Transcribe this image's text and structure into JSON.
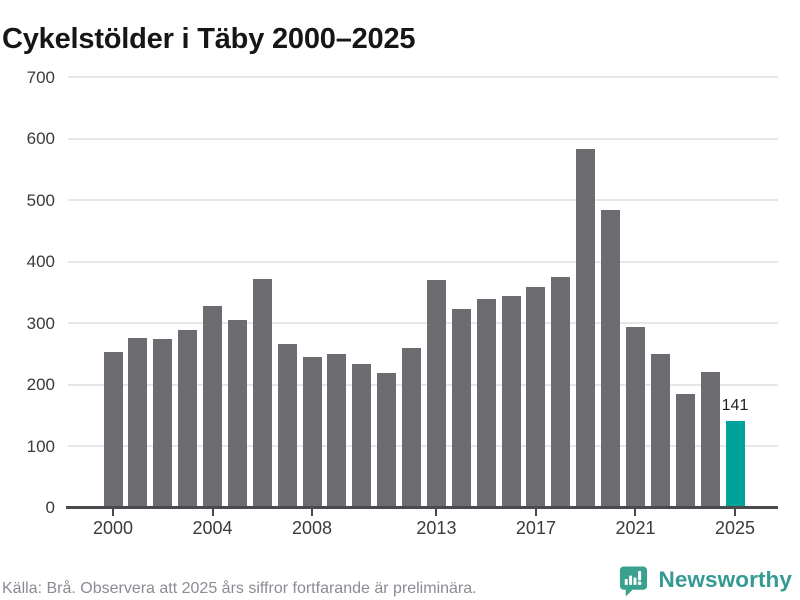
{
  "title": "Cykelstölder i Täby 2000–2025",
  "chart_data": {
    "type": "bar",
    "title": "Cykelstölder i Täby 2000–2025",
    "x": [
      2000,
      2001,
      2002,
      2003,
      2004,
      2005,
      2006,
      2007,
      2008,
      2009,
      2010,
      2011,
      2012,
      2013,
      2014,
      2015,
      2016,
      2017,
      2018,
      2019,
      2020,
      2021,
      2022,
      2023,
      2024,
      2025
    ],
    "values": [
      253,
      276,
      274,
      289,
      328,
      305,
      372,
      266,
      245,
      250,
      234,
      218,
      260,
      370,
      323,
      339,
      344,
      358,
      375,
      583,
      484,
      294,
      250,
      184,
      221,
      141
    ],
    "highlight_year": 2025,
    "highlight_value_label": "141",
    "xlabel": "",
    "ylabel": "",
    "ylim": [
      0,
      700
    ],
    "yticks": [
      0,
      100,
      200,
      300,
      400,
      500,
      600,
      700
    ],
    "xticks": [
      2000,
      2004,
      2008,
      2013,
      2017,
      2021,
      2025
    ],
    "grid": true,
    "legend": "none",
    "bar_color": "#6b6b70",
    "highlight_color": "#00a39c"
  },
  "footer": {
    "source_note": "Källa: Brå. Observera att 2025 års siffror fortfarande är preliminära."
  },
  "logo": {
    "brand": "Newsworthy",
    "icon": "speech-bubble-bar-chart-icon",
    "color": "#349a93"
  }
}
